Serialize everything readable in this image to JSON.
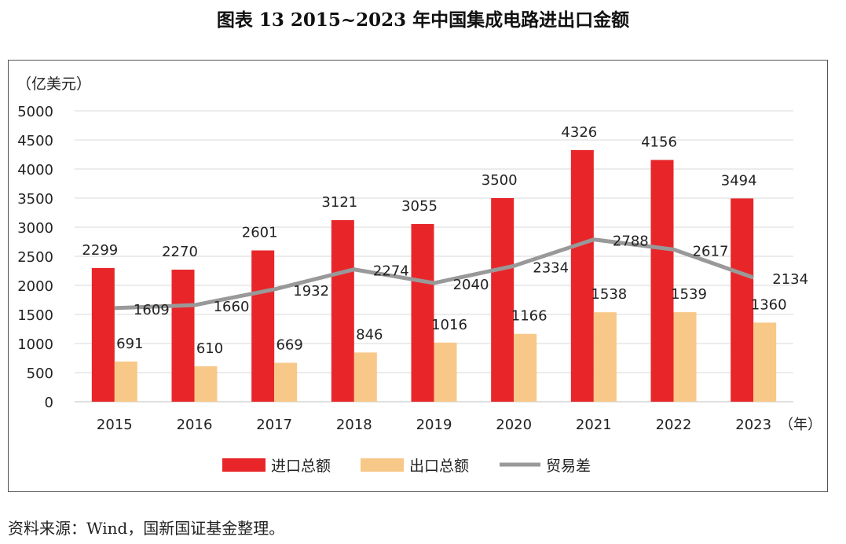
{
  "title": "图表 13  2015~2023 年中国集成电路进出口金额",
  "source": "资料来源：Wind，国新国证基金整理。",
  "chart_data": {
    "type": "bar",
    "ylabel": "（亿美元）",
    "xlabel": "（年）",
    "categories": [
      "2015",
      "2016",
      "2017",
      "2018",
      "2019",
      "2020",
      "2021",
      "2022",
      "2023"
    ],
    "ylim": [
      0,
      5000
    ],
    "yticks": [
      "0",
      "500",
      "1000",
      "1500",
      "2000",
      "2500",
      "3000",
      "3500",
      "4000",
      "4500",
      "5000"
    ],
    "grid": true,
    "legend_position": "bottom",
    "series": [
      {
        "name": "进口总额",
        "type": "bar",
        "color": "#e8262a",
        "values": [
          2299,
          2270,
          2601,
          3121,
          3055,
          3500,
          4326,
          4156,
          3494
        ]
      },
      {
        "name": "出口总额",
        "type": "bar",
        "color": "#f8c888",
        "values": [
          691,
          610,
          669,
          846,
          1016,
          1166,
          1538,
          1539,
          1360
        ]
      },
      {
        "name": "贸易差",
        "type": "line",
        "color": "#999999",
        "values": [
          1609,
          1660,
          1932,
          2274,
          2040,
          2334,
          2788,
          2617,
          2134
        ]
      }
    ]
  }
}
